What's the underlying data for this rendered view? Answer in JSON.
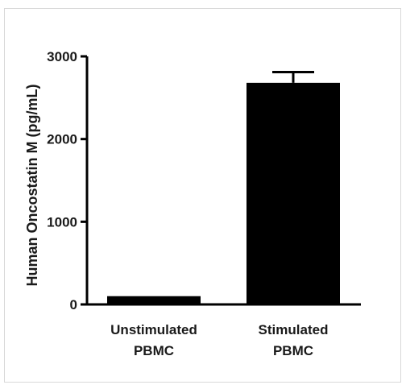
{
  "chart_data": {
    "type": "bar",
    "categories": [
      [
        "Unstimulated",
        "PBMC"
      ],
      [
        "Stimulated",
        "PBMC"
      ]
    ],
    "values": [
      100,
      2680
    ],
    "error_upper": [
      0,
      2810
    ],
    "ylabel": "Human Oncostatin M (pg/mL)",
    "xlabel": "",
    "ylim": [
      0,
      3000
    ],
    "yticks": [
      0,
      1000,
      2000,
      3000
    ],
    "bar_color": "#000000",
    "grid": false,
    "legend": "none"
  }
}
